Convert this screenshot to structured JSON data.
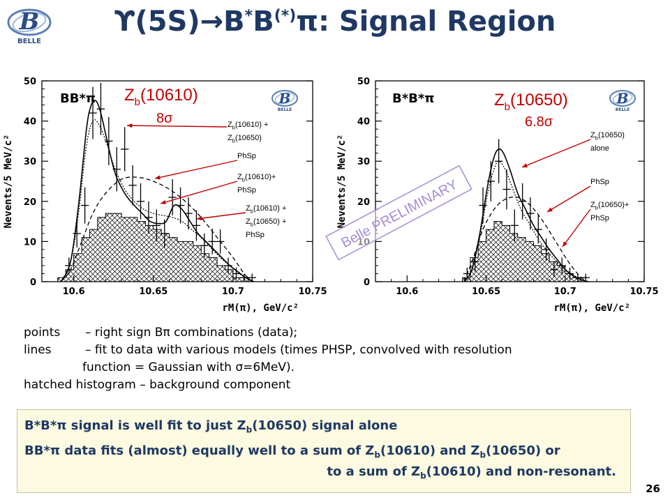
{
  "slide": {
    "title_upsilon": "ϒ",
    "title_main": "(5S)→B",
    "title_sup1": "*",
    "title_mid": "B",
    "title_sup2": "(*)",
    "title_end": "π: Signal Region",
    "logo_text": "BELLE",
    "page_number": "26"
  },
  "description": {
    "line1_key": "points",
    "line1_text": "– right sign Bπ combinations (data);",
    "line2_key": "lines",
    "line2_text": "– fit to data with various models (times PHSP, convolved with resolution",
    "line3_text": "function = Gaussian with σ=6MeV).",
    "line4_text": "hatched histogram – background component"
  },
  "summary": {
    "l1a": "B*B*π signal is well fit to just Z",
    "l1_sub": "b",
    "l1b": "(10650) signal alone",
    "l2a": "BB*π data fits (almost) equally well to a sum of Z",
    "l2_sub1": "b",
    "l2b": "(10610) and Z",
    "l2_sub2": "b",
    "l2c": "(10650) or",
    "l3a": "to a sum of Z",
    "l3_sub": "b",
    "l3b": "(10610) and non-resonant."
  },
  "colors": {
    "title": "#1f3864",
    "annotation": "#c00000",
    "watermark": "#a88bd6",
    "box_bg": "#fcfae0"
  },
  "chart_data": [
    {
      "type": "bar",
      "panel_label": "BB*π",
      "ylabel": "Nevents/5 MeV/c²",
      "xlabel": "rM(π), GeV/c²",
      "xlim": [
        10.58,
        10.75
      ],
      "ylim": [
        0,
        50
      ],
      "x_ticks": [
        "10.6",
        "10.65",
        "10.7",
        "10.75"
      ],
      "y_ticks": [
        "0",
        "10",
        "20",
        "30",
        "40",
        "50"
      ],
      "signal_label": "Z",
      "signal_label_sub": "b",
      "signal_label_rest": "(10610)",
      "significance": "8σ",
      "annotations": [
        {
          "l1": "Z_b(10610) +",
          "l2": "Z_b(10650)",
          "l3": ""
        },
        {
          "l1": "PhSp",
          "l2": "",
          "l3": ""
        },
        {
          "l1": "Z_b(10610)+",
          "l2": "PhSp",
          "l3": ""
        },
        {
          "l1": "Z_b(10610) +",
          "l2": "Z_b(10650) +",
          "l3": "PhSp"
        }
      ],
      "background_hist": {
        "edges": [
          10.59,
          10.595,
          10.6,
          10.605,
          10.61,
          10.615,
          10.62,
          10.625,
          10.63,
          10.635,
          10.64,
          10.645,
          10.65,
          10.655,
          10.66,
          10.665,
          10.67,
          10.675,
          10.68,
          10.685,
          10.69,
          10.695,
          10.7,
          10.705,
          10.71,
          10.715
        ],
        "values": [
          1,
          3,
          7,
          11,
          13,
          16,
          17,
          17,
          16,
          16,
          15,
          14,
          13,
          12,
          11,
          10,
          10,
          9,
          7,
          6,
          4,
          3,
          1,
          1,
          0
        ]
      },
      "data_points": {
        "x": [
          10.597,
          10.602,
          10.607,
          10.612,
          10.617,
          10.622,
          10.627,
          10.632,
          10.637,
          10.642,
          10.647,
          10.652,
          10.657,
          10.662,
          10.667,
          10.672,
          10.677,
          10.682,
          10.687,
          10.692,
          10.697,
          10.702,
          10.707,
          10.712
        ],
        "y": [
          4,
          12,
          19,
          42,
          43,
          35,
          28,
          33,
          24,
          20,
          16,
          14,
          12,
          21,
          19,
          17,
          14,
          9,
          10,
          10,
          4,
          2,
          1,
          1
        ],
        "err": [
          2,
          3.5,
          4.5,
          6.5,
          6.5,
          6,
          5.5,
          5.5,
          5,
          4.5,
          4,
          4,
          3.5,
          4.5,
          4.5,
          4,
          3.8,
          3,
          3.2,
          3,
          2,
          1.5,
          1,
          1
        ]
      },
      "series": [
        {
          "x": [
            10.592,
            10.598,
            10.603,
            10.608,
            10.611,
            10.614,
            10.617,
            10.621,
            10.626,
            10.632,
            10.638,
            10.643,
            10.648,
            10.653,
            10.658,
            10.663,
            10.668,
            10.673,
            10.678,
            10.683,
            10.688,
            10.693,
            10.698,
            10.703,
            10.708,
            10.713
          ],
          "y": [
            0,
            5,
            19,
            38,
            44,
            45,
            42,
            35,
            27,
            22,
            19,
            17,
            15,
            14.5,
            15,
            19,
            18,
            15,
            12,
            10,
            8,
            6,
            4,
            2.5,
            1,
            0
          ]
        },
        {
          "x": [
            10.592,
            10.598,
            10.603,
            10.608,
            10.612,
            10.616,
            10.621,
            10.626,
            10.632,
            10.638,
            10.644,
            10.65,
            10.656,
            10.662,
            10.668,
            10.674,
            10.68,
            10.686,
            10.692,
            10.698,
            10.704,
            10.71
          ],
          "y": [
            0,
            5,
            17,
            34,
            40,
            39,
            34,
            28,
            23,
            20,
            18,
            17,
            16.5,
            16,
            15,
            13,
            11,
            8.5,
            6,
            4,
            2,
            0.5
          ]
        },
        {
          "x": [
            10.592,
            10.598,
            10.605,
            10.612,
            10.62,
            10.63,
            10.64,
            10.65,
            10.66,
            10.67,
            10.68,
            10.69,
            10.7,
            10.707,
            10.712
          ],
          "y": [
            0,
            3,
            10,
            17,
            22,
            25.5,
            26,
            25,
            23,
            20,
            16,
            11,
            6,
            2,
            0
          ]
        }
      ]
    },
    {
      "type": "bar",
      "panel_label": "B*B*π",
      "ylabel": "Nevents/5 MeV/c²",
      "xlabel": "rM(π), GeV/c²",
      "xlim": [
        10.58,
        10.75
      ],
      "ylim": [
        0,
        50
      ],
      "x_ticks": [
        "10.6",
        "10.65",
        "10.7",
        "10.75"
      ],
      "y_ticks": [
        "0",
        "10",
        "20",
        "30",
        "40",
        "50"
      ],
      "signal_label": "Z",
      "signal_label_sub": "b",
      "signal_label_rest": "(10650)",
      "significance": "6.8σ",
      "annotations": [
        {
          "l1": "Z_b(10650)",
          "l2": "alone",
          "l3": ""
        },
        {
          "l1": "PhSp",
          "l2": "",
          "l3": ""
        },
        {
          "l1": "Z_b(10650)+",
          "l2": "PhSp",
          "l3": ""
        }
      ],
      "watermark": "Belle PRELIMINARY",
      "background_hist": {
        "edges": [
          10.635,
          10.64,
          10.645,
          10.65,
          10.655,
          10.66,
          10.665,
          10.67,
          10.675,
          10.68,
          10.685,
          10.69,
          10.695,
          10.7,
          10.705,
          10.71,
          10.715
        ],
        "values": [
          1,
          6,
          10,
          13,
          15,
          14,
          12,
          11,
          10,
          9,
          7,
          5,
          4,
          2,
          1,
          0
        ]
      },
      "data_points": {
        "x": [
          10.638,
          10.643,
          10.648,
          10.653,
          10.658,
          10.663,
          10.668,
          10.673,
          10.678,
          10.683,
          10.688,
          10.693,
          10.698,
          10.703,
          10.708,
          10.713
        ],
        "y": [
          2,
          5,
          19,
          25,
          30,
          23,
          14,
          20,
          17,
          13,
          8,
          3,
          4,
          2,
          1,
          1
        ],
        "err": [
          1.5,
          2.5,
          4.5,
          5,
          5.5,
          5,
          4,
          4.5,
          4,
          3.5,
          2.8,
          1.8,
          2,
          1.5,
          1,
          1
        ]
      },
      "series": [
        {
          "x": [
            10.636,
            10.641,
            10.646,
            10.651,
            10.655,
            10.658,
            10.661,
            10.665,
            10.67,
            10.675,
            10.68,
            10.685,
            10.69,
            10.695,
            10.7,
            10.705,
            10.71,
            10.715
          ],
          "y": [
            0,
            3,
            12,
            24,
            31,
            33,
            32,
            28,
            22,
            18,
            14,
            11,
            8,
            5.5,
            3,
            1.5,
            0.5,
            0
          ]
        },
        {
          "x": [
            10.636,
            10.641,
            10.646,
            10.651,
            10.655,
            10.658,
            10.662,
            10.667,
            10.672,
            10.678,
            10.684,
            10.69,
            10.696,
            10.702,
            10.708,
            10.714
          ],
          "y": [
            0,
            3,
            11,
            22,
            28,
            30,
            28,
            23,
            18,
            14,
            10,
            7,
            4.5,
            2.5,
            1,
            0
          ]
        },
        {
          "x": [
            10.636,
            10.642,
            10.648,
            10.655,
            10.662,
            10.67,
            10.678,
            10.686,
            10.694,
            10.702,
            10.709,
            10.714
          ],
          "y": [
            0,
            6,
            13,
            18,
            20.5,
            21,
            19,
            15,
            10,
            5,
            1.5,
            0
          ]
        }
      ]
    }
  ]
}
